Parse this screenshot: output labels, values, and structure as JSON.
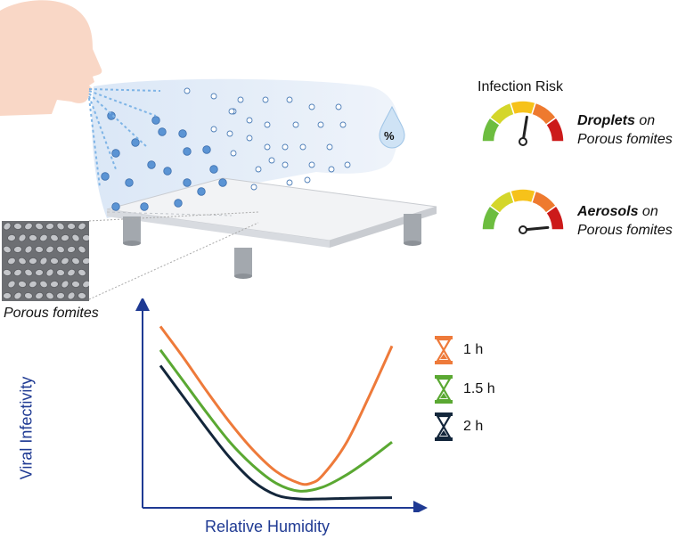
{
  "infection_risk": {
    "title": "Infection Risk",
    "droplets": {
      "bold": "Droplets",
      "rest": " on",
      "line2": "Porous fomites",
      "needle_level": 0.55
    },
    "aerosols": {
      "bold": "Aerosols",
      "rest": " on",
      "line2": "Porous fomites",
      "needle_level": 0.97
    },
    "gauge_colors": [
      "#6dbd3f",
      "#d4d62a",
      "#f6c21a",
      "#ee7a2f",
      "#cc1a1a"
    ]
  },
  "humidity_icon_label": "%",
  "porous_label": "Porous fomites",
  "chart_data": {
    "type": "line",
    "title": "",
    "xlabel": "Relative Humidity",
    "ylabel": "Viral Infectivity",
    "x_ticks": [],
    "y_ticks": [],
    "xlim": [
      0,
      100
    ],
    "ylim": [
      0,
      100
    ],
    "series": [
      {
        "name": "1 h",
        "color": "#ee7a3a",
        "x": [
          0,
          10,
          20,
          30,
          40,
          50,
          60,
          65,
          70,
          80,
          90,
          100
        ],
        "y": [
          88,
          72,
          55,
          39,
          25,
          14,
          8,
          8,
          12,
          28,
          52,
          78
        ]
      },
      {
        "name": "1.5 h",
        "color": "#5aa832",
        "x": [
          0,
          10,
          20,
          30,
          40,
          50,
          60,
          70,
          80,
          90,
          100
        ],
        "y": [
          76,
          60,
          44,
          29,
          17,
          8,
          4,
          6,
          12,
          20,
          29
        ]
      },
      {
        "name": "2 h",
        "color": "#13263b",
        "x": [
          0,
          10,
          20,
          30,
          40,
          50,
          60,
          70,
          80,
          90,
          100
        ],
        "y": [
          68,
          52,
          36,
          21,
          9,
          2,
          0,
          0,
          0.3,
          0.5,
          0.6
        ]
      }
    ],
    "legend": [
      "1 h",
      "1.5 h",
      "2 h"
    ],
    "legend_position": "right"
  }
}
